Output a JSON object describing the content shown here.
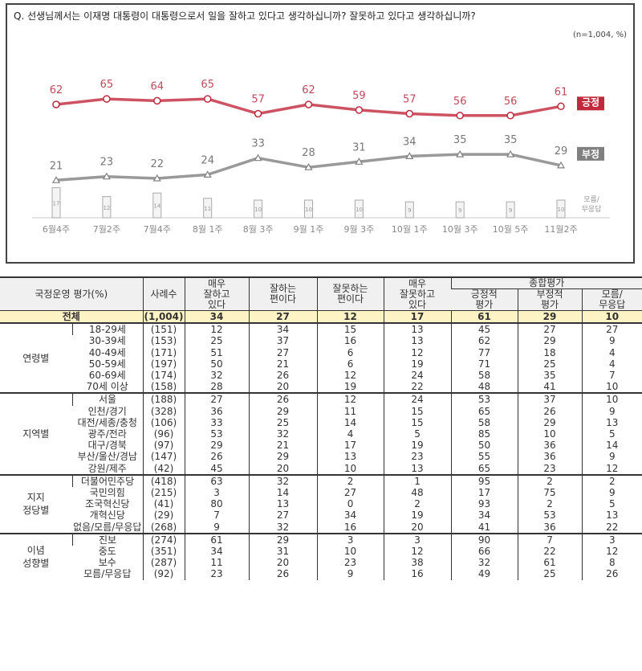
{
  "question": "Q. 선생님께서는 이재명 대통령이 대통령으로서 일을 잘하고 있다고 생각하십니까? 잘못하고 있다고 생각하십니까?",
  "sample_note": "(n=1,004, %)",
  "colors": {
    "positive": "#c0283c",
    "negative": "#808080",
    "dk": "#cccccc"
  },
  "chart_data": {
    "type": "line",
    "categories": [
      "6월4주",
      "7월2주",
      "7월4주",
      "8월 1주",
      "8월 3주",
      "9월 1주",
      "9월 3주",
      "10월 1주",
      "10월 3주",
      "10월 5주",
      "11월2주"
    ],
    "series": [
      {
        "name": "긍정",
        "values": [
          62,
          65,
          64,
          65,
          57,
          62,
          59,
          57,
          56,
          56,
          61
        ]
      },
      {
        "name": "부정",
        "values": [
          21,
          23,
          22,
          24,
          33,
          28,
          31,
          34,
          35,
          35,
          29
        ]
      },
      {
        "name": "모름/무응답",
        "type": "bar",
        "values": [
          17,
          12,
          14,
          11,
          10,
          10,
          10,
          9,
          9,
          9,
          10
        ]
      }
    ],
    "dk_label": [
      "모름/",
      "무응답"
    ]
  },
  "table": {
    "header": {
      "title": "국정운영 평가(%)",
      "n": "사례수",
      "c1": [
        "매우",
        "잘하고",
        "있다"
      ],
      "c2": [
        "잘하는",
        "편이다"
      ],
      "c3": [
        "잘못하는",
        "편이다"
      ],
      "c4": [
        "매우",
        "잘못하고",
        "있다"
      ],
      "group": "종합평가",
      "c5": [
        "긍정적",
        "평가"
      ],
      "c6": [
        "부정적",
        "평가"
      ],
      "c7": [
        "모름/",
        "무응답"
      ]
    },
    "total": {
      "label": "전체",
      "n": "(1,004)",
      "v": [
        "34",
        "27",
        "12",
        "17",
        "61",
        "29",
        "10"
      ]
    },
    "groups": [
      {
        "label": "연령별",
        "rows": [
          [
            "18-29세",
            "(151)",
            "12",
            "34",
            "15",
            "13",
            "45",
            "27",
            "27"
          ],
          [
            "30-39세",
            "(153)",
            "25",
            "37",
            "16",
            "13",
            "62",
            "29",
            "9"
          ],
          [
            "40-49세",
            "(171)",
            "51",
            "27",
            "6",
            "12",
            "77",
            "18",
            "4"
          ],
          [
            "50-59세",
            "(197)",
            "50",
            "21",
            "6",
            "19",
            "71",
            "25",
            "4"
          ],
          [
            "60-69세",
            "(174)",
            "32",
            "26",
            "12",
            "24",
            "58",
            "35",
            "7"
          ],
          [
            "70세 이상",
            "(158)",
            "28",
            "20",
            "19",
            "22",
            "48",
            "41",
            "10"
          ]
        ]
      },
      {
        "label": "지역별",
        "rows": [
          [
            "서울",
            "(188)",
            "27",
            "26",
            "12",
            "24",
            "53",
            "37",
            "10"
          ],
          [
            "인천/경기",
            "(328)",
            "36",
            "29",
            "11",
            "15",
            "65",
            "26",
            "9"
          ],
          [
            "대전/세종/충청",
            "(106)",
            "33",
            "25",
            "14",
            "15",
            "58",
            "29",
            "13"
          ],
          [
            "광주/전라",
            "(96)",
            "53",
            "32",
            "4",
            "5",
            "85",
            "10",
            "5"
          ],
          [
            "대구/경북",
            "(97)",
            "29",
            "21",
            "17",
            "19",
            "50",
            "36",
            "14"
          ],
          [
            "부산/울산/경남",
            "(147)",
            "26",
            "29",
            "13",
            "23",
            "55",
            "36",
            "9"
          ],
          [
            "강원/제주",
            "(42)",
            "45",
            "20",
            "10",
            "13",
            "65",
            "23",
            "12"
          ]
        ]
      },
      {
        "label": "지지 정당별",
        "rows": [
          [
            "더불어민주당",
            "(418)",
            "63",
            "32",
            "2",
            "1",
            "95",
            "2",
            "2"
          ],
          [
            "국민의힘",
            "(215)",
            "3",
            "14",
            "27",
            "48",
            "17",
            "75",
            "9"
          ],
          [
            "조국혁신당",
            "(41)",
            "80",
            "13",
            "0",
            "2",
            "93",
            "2",
            "5"
          ],
          [
            "개혁신당",
            "(29)",
            "7",
            "27",
            "34",
            "19",
            "34",
            "53",
            "13"
          ],
          [
            "없음/모름/무응답",
            "(268)",
            "9",
            "32",
            "16",
            "20",
            "41",
            "36",
            "22"
          ]
        ]
      },
      {
        "label": "이념 성향별",
        "rows": [
          [
            "진보",
            "(274)",
            "61",
            "29",
            "3",
            "3",
            "90",
            "7",
            "3"
          ],
          [
            "중도",
            "(351)",
            "34",
            "31",
            "10",
            "12",
            "66",
            "22",
            "12"
          ],
          [
            "보수",
            "(287)",
            "11",
            "20",
            "23",
            "38",
            "32",
            "61",
            "8"
          ],
          [
            "모름/무응답",
            "(92)",
            "23",
            "26",
            "9",
            "16",
            "49",
            "25",
            "26"
          ]
        ]
      }
    ]
  }
}
